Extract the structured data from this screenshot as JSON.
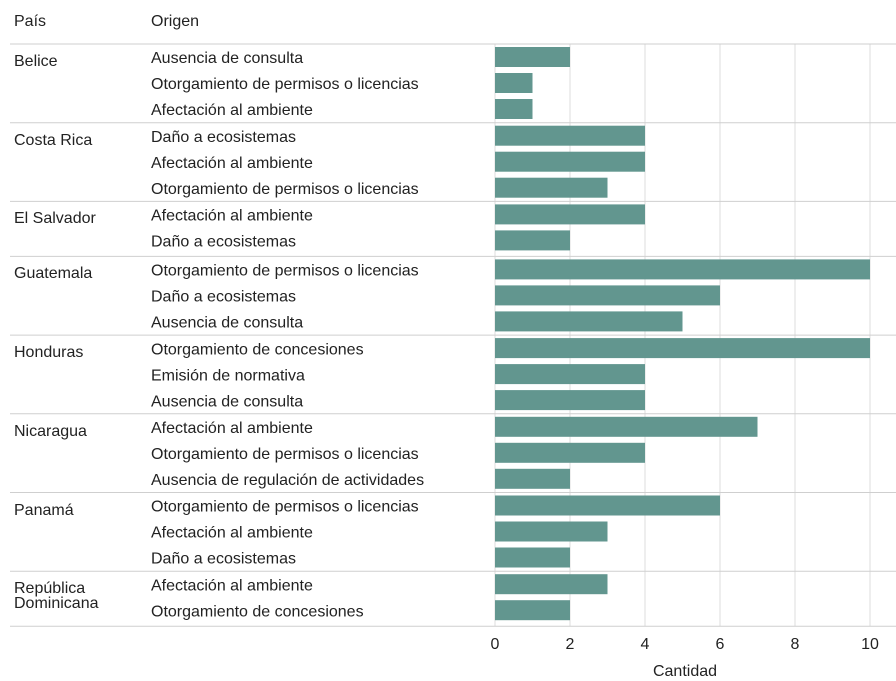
{
  "chart_data": {
    "type": "bar",
    "column_headers": [
      "País",
      "Origen"
    ],
    "x_label": "Cantidad",
    "color": "#62968f",
    "xlim": [
      0,
      10
    ],
    "xticks": [
      0,
      2,
      4,
      6,
      8,
      10
    ],
    "grid": true,
    "groups": [
      {
        "name": "Belice",
        "categories": [
          "Ausencia de consulta",
          "Otorgamiento de permisos o licencias",
          "Afectación al ambiente"
        ],
        "values": [
          2,
          1,
          1
        ]
      },
      {
        "name": "Costa Rica",
        "categories": [
          "Daño a ecosistemas",
          "Afectación al ambiente",
          "Otorgamiento de permisos o licencias"
        ],
        "values": [
          4,
          4,
          3
        ]
      },
      {
        "name": "El Salvador",
        "categories": [
          "Afectación al ambiente",
          "Daño a ecosistemas"
        ],
        "values": [
          4,
          2
        ]
      },
      {
        "name": "Guatemala",
        "categories": [
          "Otorgamiento de permisos o licencias",
          "Daño a ecosistemas",
          "Ausencia de consulta"
        ],
        "values": [
          10,
          6,
          5
        ]
      },
      {
        "name": "Honduras",
        "categories": [
          "Otorgamiento de concesiones",
          "Emisión de normativa",
          "Ausencia de consulta"
        ],
        "values": [
          10,
          4,
          4
        ]
      },
      {
        "name": "Nicaragua",
        "categories": [
          "Afectación al ambiente",
          "Otorgamiento de permisos o licencias",
          "Ausencia de regulación de actividades"
        ],
        "values": [
          7,
          4,
          2
        ]
      },
      {
        "name": "Panamá",
        "categories": [
          "Otorgamiento de permisos o licencias",
          "Afectación al ambiente",
          "Daño a ecosistemas"
        ],
        "values": [
          6,
          3,
          2
        ]
      },
      {
        "name": "República Dominicana",
        "categories": [
          "Afectación al ambiente",
          "Otorgamiento de concesiones"
        ],
        "values": [
          3,
          2
        ]
      }
    ]
  }
}
